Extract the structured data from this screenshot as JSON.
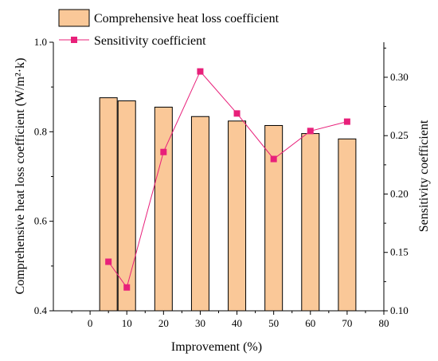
{
  "chart_data": {
    "type": "bar+line",
    "xlabel": "Improvement (%)",
    "ylabel_left": "Comprehensive heat loss coefficient (W/m²·k)",
    "ylabel_right": "Sensitivity coefficient",
    "xlim": [
      -10,
      80
    ],
    "xticks": [
      0,
      10,
      20,
      30,
      40,
      50,
      60,
      70,
      80
    ],
    "ylim_left": [
      0.4,
      1.0
    ],
    "yticks_left": [
      "0.4",
      "0.6",
      "0.8",
      "1.0"
    ],
    "ylim_right": [
      0.1,
      0.33
    ],
    "yticks_right": [
      "0.10",
      "0.15",
      "0.20",
      "0.25",
      "0.30"
    ],
    "legend_position": "top-left",
    "bar_series": {
      "name": "Comprehensive heat loss coefficient",
      "color": "#FAC898",
      "edge_color": "#000000",
      "x": [
        5,
        10,
        20,
        30,
        40,
        50,
        60,
        70
      ],
      "values": [
        0.876,
        0.869,
        0.855,
        0.834,
        0.824,
        0.814,
        0.796,
        0.784
      ]
    },
    "line_series": {
      "name": "Sensitivity coefficient",
      "color": "#E8207A",
      "x": [
        5,
        10,
        20,
        30,
        40,
        50,
        60,
        70
      ],
      "values": [
        0.142,
        0.12,
        0.236,
        0.305,
        0.269,
        0.23,
        0.254,
        0.262
      ]
    }
  }
}
